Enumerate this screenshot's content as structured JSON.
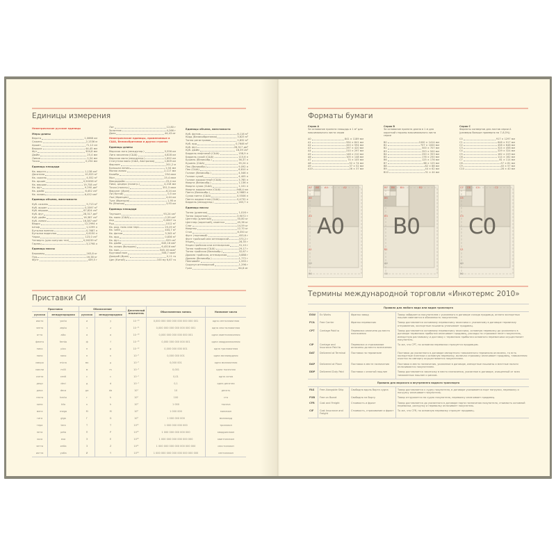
{
  "colors": {
    "page": "#fdf7e2",
    "cover": "#8a887a",
    "accent_rule": "#f0b9a5",
    "accent_text": "#e0584a"
  },
  "units": {
    "title": "Единицы измерения",
    "columns": [
      [
        {
          "red": "Неметрические русские единицы"
        },
        {
          "sub": "Меры длины"
        },
        {
          "n": "Верста",
          "v": "1,0668 км"
        },
        {
          "n": "Сажень",
          "v": "2,1336 м"
        },
        {
          "n": "Аршин",
          "v": "71,12 см"
        },
        {
          "n": "Вершок",
          "v": "44,45 мм"
        },
        {
          "n": "Фут",
          "v": "304,8 мм"
        },
        {
          "n": "Дюйм",
          "v": "25,4 мм"
        },
        {
          "n": "Линия",
          "v": "2,54 мм"
        },
        {
          "n": "Точка",
          "v": "0,254 мм"
        },
        {
          "sub": "Единицы площади"
        },
        {
          "n": "Кв. верста",
          "v": "1,138 км²"
        },
        {
          "n": "Десятина",
          "v": "10,925 м²"
        },
        {
          "n": "Кв. сажень",
          "v": "4,552 м²"
        },
        {
          "n": "Кв. аршин",
          "v": "0,50058 м²"
        },
        {
          "n": "Кв. вершок",
          "v": "19,758 см²"
        },
        {
          "n": "Кв. фут",
          "v": "9,290 дм²"
        },
        {
          "n": "Кв. дюйм",
          "v": "6,452 см²"
        },
        {
          "n": "Кв. линия",
          "v": "6,452 мм²"
        },
        {
          "sub": "Единицы объема, вместимости"
        },
        {
          "n": "Куб. сажень",
          "v": "9,713 м³"
        },
        {
          "n": "Куб. аршин",
          "v": "0,3597 м³"
        },
        {
          "n": "Куб. вершок",
          "v": "87,824 см³"
        },
        {
          "n": "Куб. фут",
          "v": "28,317 дм³"
        },
        {
          "n": "Куб. дюйм",
          "v": "16,387 см³"
        },
        {
          "n": "Куб. линия",
          "v": "16,387 мм³"
        },
        {
          "n": "Ведро",
          "v": "12,2994 л"
        },
        {
          "n": "Штоф",
          "v": "1,2299 л"
        },
        {
          "n": "Бутылка винная",
          "v": "0,7687 л"
        },
        {
          "n": "Бутылка водочная",
          "v": "0,6150 л"
        },
        {
          "n": "Чарка",
          "v": "123,0 см³"
        },
        {
          "n": "Четверть (для сыпучих тел)",
          "v": "0,26239 м³"
        },
        {
          "n": "Гарнец",
          "v": "3,2798 л"
        },
        {
          "sub": "Единицы массы"
        },
        {
          "n": "Берковец",
          "v": "163,8 кг"
        },
        {
          "n": "Пуд",
          "v": "16,38 кг"
        },
        {
          "n": "Фунт",
          "v": "409,5 г"
        }
      ],
      [
        {
          "n": "Лот",
          "v": "12,80 г"
        },
        {
          "n": "Золотник",
          "v": "4,266 г"
        },
        {
          "n": "Доля",
          "v": "44,43 мг"
        },
        {
          "red": "Неметрические единицы, применяемые в США, Великобритании и других странах"
        },
        {
          "sub": "Единицы длины"
        },
        {
          "n": "Морская лига (междунар.)",
          "v": "5,556 км"
        },
        {
          "n": "Лига законная (США)",
          "v": "4,828 км"
        },
        {
          "n": "Морская миля (междунар.)",
          "v": "1,852 км"
        },
        {
          "n": "Статутная миля (США, Австралия)",
          "v": "1,609 км"
        },
        {
          "n": "Фарлонг",
          "v": "201,2 м"
        },
        {
          "n": "Большая линия",
          "v": "2,54 мм"
        },
        {
          "n": "Малая линия",
          "v": "2,117 мм"
        },
        {
          "n": "Калибр",
          "v": "254 мкм"
        },
        {
          "n": "Мил",
          "v": "25,4 мкм"
        },
        {
          "n": "Микродюйм",
          "v": "25,4 нм"
        },
        {
          "n": "Пика, цицеро (полигр.)",
          "v": "4,218 мм"
        },
        {
          "n": "Точка (полигр.)",
          "v": "351,5 мкм"
        },
        {
          "n": "Фарсанг (Иран)",
          "v": "6,24 км"
        },
        {
          "n": "Ли (Китай)",
          "v": "0,5 км"
        },
        {
          "n": "Лье (Франция)",
          "v": "4,44 км"
        },
        {
          "n": "Туаз (Франция)",
          "v": "1,95 м"
        },
        {
          "n": "Ри (Япония)",
          "v": "3,93 км"
        },
        {
          "sub": "Единицы площади"
        },
        {
          "n": "Тауншип",
          "v": "93,24 км²"
        },
        {
          "n": "Кв. миля (США)",
          "v": "2,59 км²"
        },
        {
          "n": "Акр",
          "v": "0,4047 га"
        },
        {
          "n": "Руд",
          "v": "1012 м²"
        },
        {
          "n": "Кв. род, поль или перч",
          "v": "25,29 м²"
        },
        {
          "n": "Кв. чейн",
          "v": "404,7 м²"
        },
        {
          "n": "Кв. фатом",
          "v": "3,345 м²"
        },
        {
          "n": "Кв. ярд",
          "v": "0,836 м²"
        },
        {
          "n": "Кв. фут",
          "v": "929 см²"
        },
        {
          "n": "Кв. дюйм",
          "v": "645,16 мм²"
        },
        {
          "n": "Кв. линия (большая)",
          "v": "6,4516 мм²"
        },
        {
          "n": "Кв. мил",
          "v": "645,16 мкм²"
        },
        {
          "n": "Круговой мил",
          "v": "506,7 мкм²"
        },
        {
          "n": "Джериб (Иран)",
          "v": "0,11 га"
        },
        {
          "n": "Цин (Китай)",
          "v": "100 му 6,67 га"
        }
      ],
      [
        {
          "sub": "Единицы объема, вместимости"
        },
        {
          "n": "Куб. фатом",
          "v": "6,116 м³"
        },
        {
          "n": "Корд (Великобритания)",
          "v": "3,625 м³"
        },
        {
          "n": "Тонна регистровая",
          "v": "2,832 м³"
        },
        {
          "n": "Куб. ярд",
          "v": "0,7646 м³"
        },
        {
          "n": "Куб. фут",
          "v": "28,317 дм³"
        },
        {
          "n": "Куб. дюйм",
          "v": "16,39 см³"
        },
        {
          "n": "Баррель нефтяной (США)",
          "v": "158,9 л"
        },
        {
          "n": "Баррель сухой (США)",
          "v": "115,6 л"
        },
        {
          "n": "Бушель (Великобр.)",
          "v": "36,37 л"
        },
        {
          "n": "Бушель (США)",
          "v": "35,24 л"
        },
        {
          "n": "Пек (Великобр.)",
          "v": "9,092 л"
        },
        {
          "n": "Пек (США)",
          "v": "8,810 л"
        },
        {
          "n": "Галлон (Великобр.)",
          "v": "4,546 л"
        },
        {
          "n": "Галлон сухой",
          "v": "4,405 л"
        },
        {
          "n": "Галлон жидкостный (США)",
          "v": "3,785 л"
        },
        {
          "n": "Кварта (Великобр.)",
          "v": "1,136 л"
        },
        {
          "n": "Кварта сухая (США)",
          "v": "1,101 л"
        },
        {
          "n": "Кварта жидкостная (США)",
          "v": "946,4 мл"
        },
        {
          "n": "Пинта (Великобр.)",
          "v": "0,5683 л"
        },
        {
          "n": "Сухая пинта (США)",
          "v": "0,5506 л"
        },
        {
          "n": "Пинта жидкостная (США)",
          "v": "0,4732 л"
        },
        {
          "n": "Баррель (междунар.)",
          "v": "163,7 л"
        },
        {
          "sub": "Единицы массы"
        },
        {
          "n": "Тонна (длинная)",
          "v": "1,016 т"
        },
        {
          "n": "Тонна (короткая)",
          "v": "0,9072 т"
        },
        {
          "n": "Центнер (длинный)",
          "v": "50,80 кг"
        },
        {
          "n": "Центнер (короткий), квинтал",
          "v": "45,36 кг"
        },
        {
          "n": "Слаг",
          "v": "14,59 кг"
        },
        {
          "n": "Квартер",
          "v": "12,70 кг"
        },
        {
          "n": "Стон",
          "v": "6,350 кг"
        },
        {
          "n": "Фунт (торговый)",
          "v": "453,6 г"
        },
        {
          "n": "Фунт тройский или аптекарский",
          "v": "373,2 г"
        },
        {
          "n": "Унция",
          "v": "28,35 г"
        },
        {
          "n": "Унция тройская или аптекарская",
          "v": "31,10 г"
        },
        {
          "n": "Тонна тройская (США)",
          "v": "29,17 г"
        },
        {
          "n": "Тонна тройская (Великобр.)",
          "v": "32,67 г"
        },
        {
          "n": "Драхма тройская, аптекарская",
          "v": "3,888 г"
        },
        {
          "n": "Драхма (Великобр.)",
          "v": "1,772 г"
        },
        {
          "n": "Пеннивейт",
          "v": "1,555 г"
        },
        {
          "n": "Скрупул аптекарский",
          "v": "1,296 г"
        },
        {
          "n": "Гран",
          "v": "64,8 мг"
        }
      ]
    ]
  },
  "si": {
    "title": "Приставки СИ",
    "headers": {
      "prefix": "Приставка",
      "symbol": "Обозначение",
      "russian": "русская",
      "intl": "международная",
      "multiplier": "Десятичный множитель",
      "written": "Обыкновенная запись",
      "name": "Название числа"
    },
    "rows": [
      [
        "иокто",
        "yocto",
        "и",
        "y",
        "10⁻²⁴",
        "0,000 000 000 000 000 000 000 001",
        "одна септиллионная"
      ],
      [
        "зепто",
        "zepto",
        "з",
        "z",
        "10⁻²¹",
        "0,000 000 000 000 000 000 001",
        "одна секстиллионная"
      ],
      [
        "атто",
        "atto",
        "а",
        "a",
        "10⁻¹⁸",
        "0,000 000 000 000 000 001",
        "одна квинтиллионная"
      ],
      [
        "фемто",
        "femto",
        "ф",
        "f",
        "10⁻¹⁵",
        "0,000 000 000 000 001",
        "одна квадриллионная"
      ],
      [
        "пико",
        "pico",
        "п",
        "p",
        "10⁻¹²",
        "0,000 000 000 001",
        "одна триллионная"
      ],
      [
        "нано",
        "nano",
        "н",
        "n",
        "10⁻⁹",
        "0,000 000 001",
        "одна миллиардная"
      ],
      [
        "микро",
        "micro",
        "мк",
        "μ",
        "10⁻⁶",
        "0,000 001",
        "одна миллионная"
      ],
      [
        "милли",
        "milli",
        "м",
        "m",
        "10⁻³",
        "0,001",
        "одна тысячная"
      ],
      [
        "санти",
        "centi",
        "с",
        "c",
        "10⁻²",
        "0,01",
        "одна сотая"
      ],
      [
        "деци",
        "deci",
        "д",
        "d",
        "10⁻¹",
        "0,1",
        "одна десятая"
      ],
      [
        "дека",
        "deca",
        "да",
        "da",
        "10¹",
        "10",
        "десять"
      ],
      [
        "гекто",
        "hecto",
        "г",
        "h",
        "10²",
        "100",
        "сто"
      ],
      [
        "кило",
        "kilo",
        "к",
        "k",
        "10³",
        "1 000",
        "тысяча"
      ],
      [
        "мега",
        "mega",
        "М",
        "M",
        "10⁶",
        "1 000 000",
        "миллион"
      ],
      [
        "гига",
        "giga",
        "Г",
        "G",
        "10⁹",
        "1 000 000 000",
        "миллиард"
      ],
      [
        "тера",
        "tera",
        "Т",
        "T",
        "10¹²",
        "1 000 000 000 000",
        "триллион"
      ],
      [
        "пета",
        "peta",
        "П",
        "P",
        "10¹⁵",
        "1 000 000 000 000 000",
        "квадриллион"
      ],
      [
        "экса",
        "exa",
        "Э",
        "E",
        "10¹⁸",
        "1 000 000 000 000 000 000",
        "квинтиллион"
      ],
      [
        "зетта",
        "zetta",
        "З",
        "Z",
        "10²¹",
        "1 000 000 000 000 000 000 000",
        "секстиллион"
      ],
      [
        "иотта",
        "yotta",
        "И",
        "Y",
        "10²⁴",
        "1 000 000 000 000 000 000 000 000",
        "септиллион"
      ]
    ]
  },
  "paper": {
    "title": "Форматы бумаги",
    "series": [
      {
        "name": "Серия А",
        "desc": "За основание принята площадь в 1 м² для максимального листа серии",
        "big": "A0",
        "sizes": [
          [
            "A0",
            "841 × 1189 мм"
          ],
          [
            "A1",
            "594 × 841 мм"
          ],
          [
            "A2",
            "420 × 594 мм"
          ],
          [
            "A3",
            "297 × 420 мм"
          ],
          [
            "A4",
            "210 × 297 мм"
          ],
          [
            "A5",
            "148 × 210 мм"
          ],
          [
            "A6",
            "105 × 148 мм"
          ],
          [
            "A7",
            "74 × 105 мм"
          ],
          [
            "A8",
            "52 × 74 мм"
          ],
          [
            "A9",
            "37 × 52 мм"
          ],
          [
            "A10",
            "26 × 37 мм"
          ]
        ],
        "labels": [
          "A7",
          "A6",
          "A4",
          "A2",
          "A5",
          "A3",
          "A1",
          "C0",
          "B0"
        ]
      },
      {
        "name": "Серия B",
        "desc": "За основание принята длина в 1 м для короткой стороны максимального листа серии",
        "big": "B0",
        "sizes": [
          [
            "B0",
            "1000 × 1414 мм"
          ],
          [
            "B1",
            "707 × 1000 мм"
          ],
          [
            "B2",
            "500 × 707 мм"
          ],
          [
            "B3",
            "353 × 500 мм"
          ],
          [
            "B4",
            "250 × 353 мм"
          ],
          [
            "B5",
            "176 × 250 мм"
          ],
          [
            "B6",
            "125 × 176 мм"
          ],
          [
            "B7",
            "88 × 125 мм"
          ],
          [
            "B8",
            "62 × 88 мм"
          ],
          [
            "B9",
            "44 × 62 мм"
          ],
          [
            "B10",
            "31 × 44 мм"
          ]
        ],
        "labels": [
          "B7",
          "B6",
          "B4",
          "B2",
          "B5",
          "B3",
          "B1",
          "A0",
          "C0"
        ]
      },
      {
        "name": "Серия С",
        "desc": "Форматы конвертов для листов серии А (размеры больше примерно на 7–8,5%)",
        "big": "C0",
        "sizes": [
          [
            "C0",
            "917 × 1297 мм"
          ],
          [
            "C1",
            "648 × 917 мм"
          ],
          [
            "C2",
            "458 × 648 мм"
          ],
          [
            "C3",
            "324 × 458 мм"
          ],
          [
            "C4",
            "229 × 324 мм"
          ],
          [
            "C5",
            "162 × 229 мм"
          ],
          [
            "C6",
            "114 × 162 мм"
          ],
          [
            "C7",
            "81 × 114 мм"
          ],
          [
            "C8",
            "57 × 81 мм"
          ],
          [
            "C9",
            "40 × 57 мм"
          ],
          [
            "C10",
            "28 × 40 мм"
          ]
        ],
        "labels": [
          "C7",
          "C6",
          "C4",
          "C2",
          "C5",
          "C3",
          "C1",
          "A0",
          "B0"
        ]
      }
    ]
  },
  "incoterms": {
    "title": "Термины международной торговли «Инкотермс 2010»",
    "sections": [
      {
        "title": "Правила для любого вида или видов транспорта",
        "rows": [
          [
            "EXW",
            "Ex Works",
            "Франко завод",
            "Товар забирается покупателем с указанного в договоре склада продавца, оплата экспортных пошлин вменяется в обязанность покупателю."
          ],
          [
            "FCA",
            "Free Carrier",
            "Франко перевозчик",
            "Товар доставляется основному перевозчику заказчика к указанному в договоре терминалу отправления, экспортные пошлины уплачивает продавец."
          ],
          [
            "CPT",
            "Carriage Paid to",
            "Перевозка оплачена до места назначения",
            "Товар доставляется основному перевозчику заказчика, основную перевозку до указанного в договоре терминала прибытия оплачивает продавец, расходы по страховке несет покупатель, импортную растаможку и доставку с терминала прибытия основного перевозчика осуществляет покупатель."
          ],
          [
            "CIP",
            "Carriage and Insurance Paid to",
            "Перевозка и страхование оплачены до места назначения",
            "То же, что CPT, но основная перевозка страхуется продавцом."
          ],
          [
            "DAT",
            "Delivered at Terminal",
            "Поставка на терминале",
            "Поставка до указанного в договоре импортного таможенного терминала оплачена, то есть экспортные платежи и основную перевозку, включая страховку оплачивает продавец, таможенная очистка по импорту осуществляется покупателем."
          ],
          [
            "DAP",
            "Delivered at Place",
            "Поставка в месте назначения",
            "Поставка в место назначения, указанное в договоре, импортные пошлины и местные налоги оплачиваются покупателем."
          ],
          [
            "DDP",
            "Delivered Duty Paid",
            "Поставка с оплатой пошлин",
            "Товар доставляется заказчику в место назначения, указанное в договоре, очищенный от всех таможенных пошлин и рисков."
          ]
        ]
      },
      {
        "title": "Правила для морского и внутреннего водного транспорта",
        "rows": [
          [
            "FAS",
            "Free Alongside Ship",
            "Свободно вдоль борта судна",
            "Товар доставляется к судну покупателя, в договоре указывается порт погрузки, перевалку и погрузку оплачивает покупатель."
          ],
          [
            "FOB",
            "Free on Board",
            "Свободно на борту",
            "Товар отгружается на судно покупателя, перевалку оплачивает продавец."
          ],
          [
            "CFR",
            "Cost and Freight",
            "Стоимость и фрахт",
            "Товар доставляется до указанного в договоре порта назначения покупателя, стоимость основной перевозки, разгрузку и перевалку оплачивает покупатель."
          ],
          [
            "CIF",
            "Cost Insurance and Freight",
            "Стоимость, страхование и фрахт",
            "То же, что CFR, но основную перевозку страхует продавец."
          ]
        ]
      }
    ]
  }
}
